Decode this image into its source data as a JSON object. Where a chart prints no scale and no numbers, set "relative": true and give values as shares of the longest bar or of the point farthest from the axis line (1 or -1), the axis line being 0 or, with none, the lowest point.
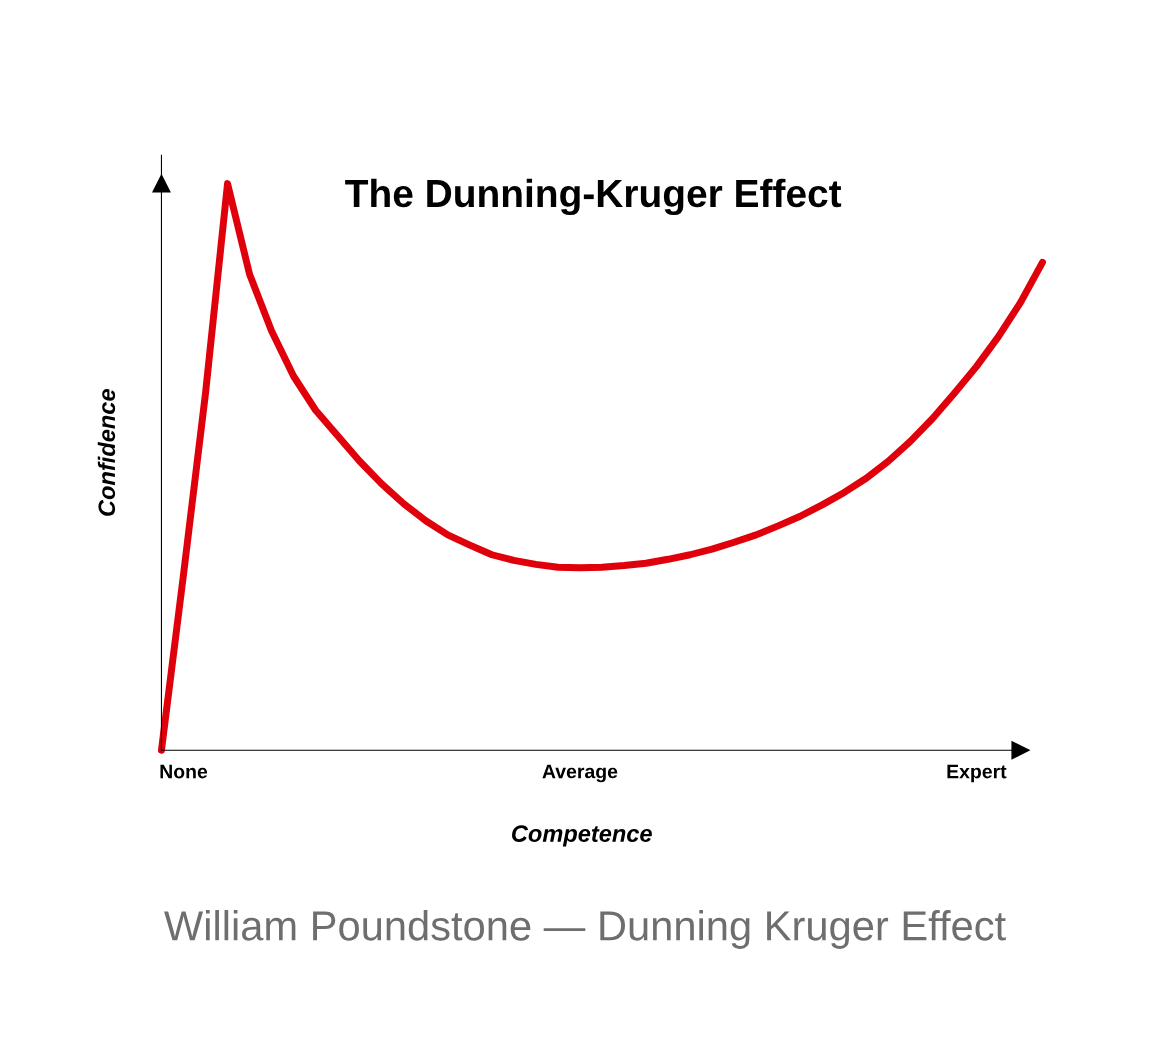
{
  "chart_data": {
    "type": "line",
    "title": "The Dunning-Kruger Effect",
    "xlabel": "Competence",
    "ylabel": "Confidence",
    "relative": true,
    "categories": [
      null,
      "None",
      null,
      null,
      null,
      null,
      null,
      null,
      null,
      null,
      null,
      null,
      null,
      null,
      null,
      null,
      null,
      null,
      null,
      "Average",
      null,
      null,
      null,
      null,
      null,
      null,
      null,
      null,
      null,
      null,
      null,
      null,
      null,
      null,
      null,
      null,
      null,
      "Expert",
      null,
      null,
      null
    ],
    "series": [
      {
        "color": "#e0000b",
        "values": [
          0,
          0.31,
          0.63,
          1,
          0.84,
          0.74,
          0.66,
          0.6,
          0.555,
          0.51,
          0.47,
          0.435,
          0.405,
          0.38,
          0.362,
          0.345,
          0.335,
          0.328,
          0.323,
          0.322,
          0.323,
          0.326,
          0.33,
          0.337,
          0.345,
          0.355,
          0.367,
          0.38,
          0.396,
          0.413,
          0.433,
          0.455,
          0.48,
          0.51,
          0.545,
          0.585,
          0.63,
          0.677,
          0.73,
          0.79,
          0.861
        ]
      }
    ],
    "legend": false,
    "marker": "none",
    "line_style": "solid",
    "annotations": [
      "William Poundstone — Dunning Kruger Effect"
    ]
  }
}
